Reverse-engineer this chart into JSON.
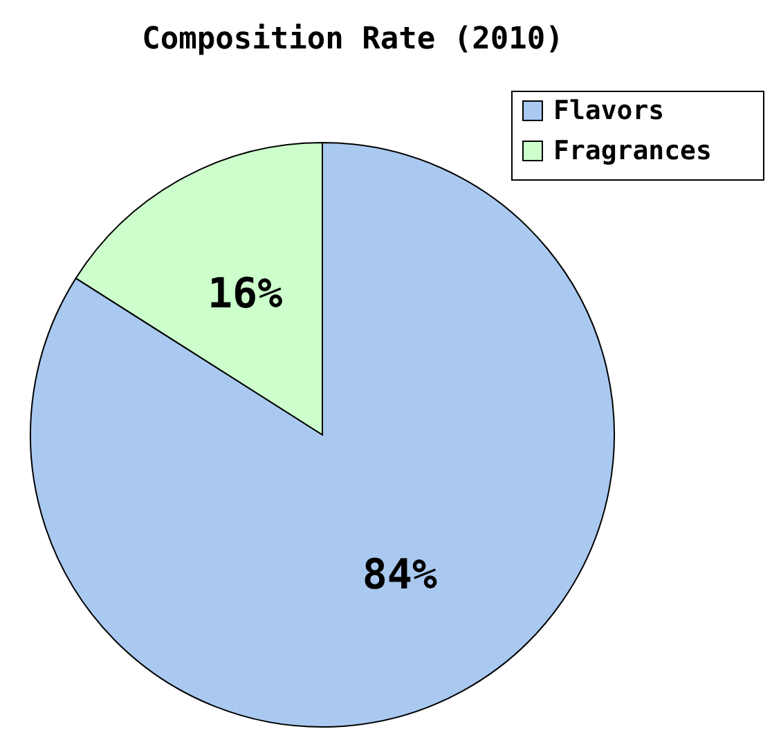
{
  "chart_data": {
    "type": "pie",
    "title": "Composition Rate (2010)",
    "categories": [
      "Flavors",
      "Fragrances"
    ],
    "values": [
      84,
      16
    ],
    "colors": [
      "#a9c9f0",
      "#ccffcc"
    ],
    "value_labels": [
      "84%",
      "16%"
    ],
    "legend": "top right"
  }
}
